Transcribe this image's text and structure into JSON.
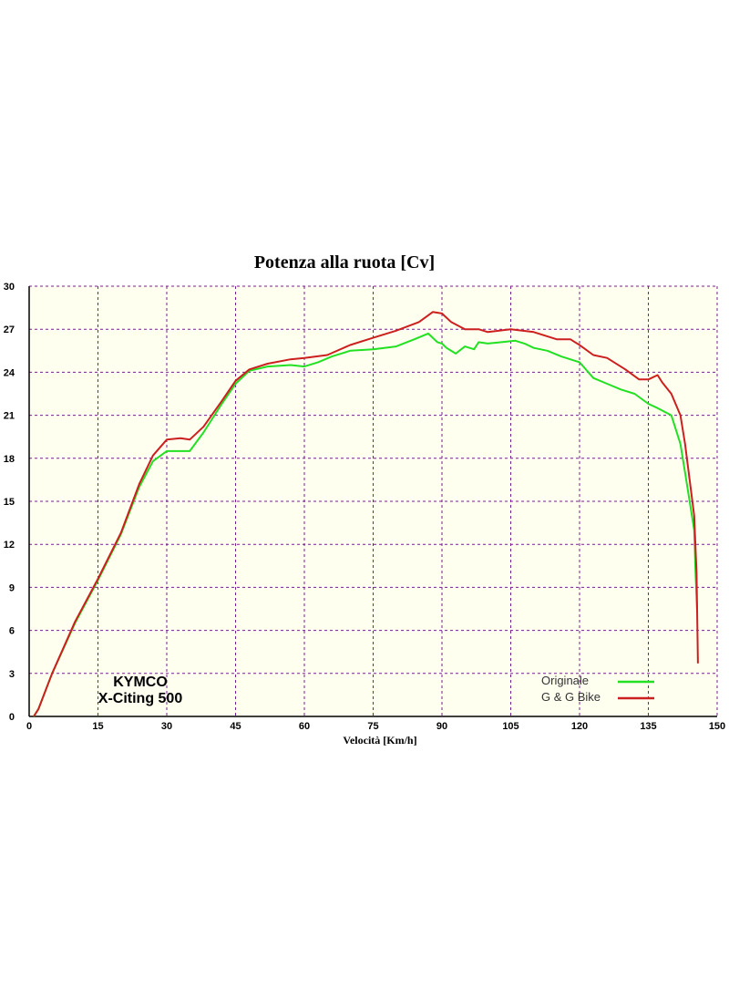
{
  "chart_data": {
    "type": "line",
    "title": "Potenza alla ruota [Cv]",
    "xlabel": "Velocità [Km/h]",
    "ylabel": "",
    "xlim": [
      0,
      150
    ],
    "ylim": [
      0,
      30
    ],
    "x_ticks": [
      0,
      15,
      30,
      45,
      60,
      75,
      90,
      105,
      120,
      135,
      150
    ],
    "y_ticks": [
      0,
      3,
      6,
      9,
      12,
      15,
      18,
      21,
      24,
      27,
      30
    ],
    "grid": true,
    "legend_position": "bottom-right",
    "annotation": [
      "KYMCO",
      "X-Citing 500"
    ],
    "colors": {
      "plot_background": "#fffff0",
      "grid": "#7a1f8f",
      "axes": "#000000"
    },
    "series": [
      {
        "name": "Originale",
        "color": "#22e022",
        "x": [
          1,
          2,
          5,
          10,
          15,
          20,
          24,
          27,
          30,
          33,
          35,
          38,
          42,
          45,
          48,
          52,
          57,
          60,
          63,
          66,
          70,
          75,
          80,
          84,
          87,
          89,
          90,
          91,
          93,
          95,
          97,
          98,
          100,
          103,
          106,
          108,
          110,
          113,
          116,
          120,
          123,
          126,
          129,
          132,
          135,
          137,
          140,
          142,
          143,
          144,
          145,
          145.3,
          145.6
        ],
        "y": [
          0,
          0.5,
          3,
          6.5,
          9.5,
          12.7,
          16,
          17.8,
          18.5,
          18.5,
          18.5,
          19.8,
          21.8,
          23.2,
          24.1,
          24.4,
          24.5,
          24.4,
          24.7,
          25.1,
          25.5,
          25.6,
          25.8,
          26.3,
          26.7,
          26.1,
          26.0,
          25.7,
          25.3,
          25.8,
          25.6,
          26.1,
          26.0,
          26.1,
          26.2,
          26.0,
          25.7,
          25.5,
          25.1,
          24.7,
          23.6,
          23.2,
          22.8,
          22.5,
          21.8,
          21.5,
          21.0,
          19.0,
          17.0,
          15.0,
          13.0,
          10.0,
          7.5
        ]
      },
      {
        "name": "G & G Bike",
        "color": "#cc1f1f",
        "x": [
          1,
          2,
          5,
          10,
          15,
          20,
          24,
          27,
          30,
          33,
          35,
          38,
          42,
          45,
          48,
          52,
          57,
          60,
          65,
          70,
          75,
          80,
          85,
          88,
          90,
          92,
          95,
          98,
          100,
          105,
          110,
          115,
          118,
          120,
          123,
          126,
          130,
          133,
          135,
          137,
          138,
          140,
          142,
          143,
          144,
          145,
          145.5,
          145.8
        ],
        "y": [
          0,
          0.5,
          3,
          6.6,
          9.6,
          12.8,
          16.2,
          18.2,
          19.3,
          19.4,
          19.3,
          20.2,
          22.0,
          23.4,
          24.2,
          24.6,
          24.9,
          25.0,
          25.2,
          25.9,
          26.4,
          26.9,
          27.5,
          28.2,
          28.1,
          27.5,
          27.0,
          27.0,
          26.8,
          27.0,
          26.8,
          26.3,
          26.3,
          25.9,
          25.2,
          25.0,
          24.2,
          23.5,
          23.5,
          23.8,
          23.3,
          22.5,
          21.0,
          19.0,
          16.5,
          14.0,
          10.0,
          3.7
        ]
      }
    ]
  }
}
